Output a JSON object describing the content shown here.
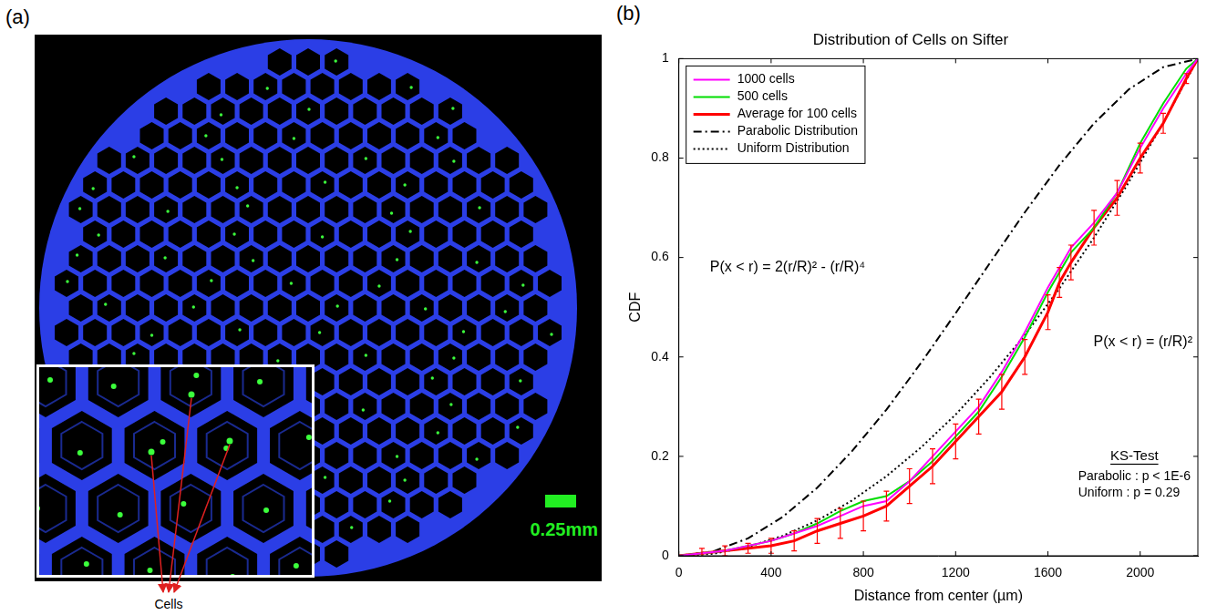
{
  "image_panel": {
    "panel_label": "(a)",
    "scale_bar_label": "0.25mm",
    "callout": "Cells"
  },
  "chart_data": {
    "type": "line",
    "panel_label": "(b)",
    "title": "Distribution of Cells on Sifter",
    "x_label": "Distance from center (µm)",
    "y_label": "CDF",
    "xlim": [
      0,
      2250
    ],
    "ylim": [
      0,
      1
    ],
    "xticks": [
      0,
      400,
      800,
      1200,
      1600,
      2000
    ],
    "yticks": [
      0,
      0.2,
      0.4,
      0.6,
      0.8,
      1
    ],
    "grid": false,
    "legend": "upper left",
    "series": [
      {
        "name": "1000 cells",
        "color": "#ff00ff",
        "line_style": "solid",
        "x": [
          0,
          200,
          400,
          500,
          600,
          700,
          800,
          900,
          1000,
          1100,
          1200,
          1300,
          1400,
          1500,
          1600,
          1700,
          1800,
          1900,
          2000,
          2100,
          2200,
          2250
        ],
        "values": [
          0,
          0.01,
          0.03,
          0.045,
          0.06,
          0.08,
          0.1,
          0.11,
          0.15,
          0.2,
          0.25,
          0.3,
          0.37,
          0.45,
          0.54,
          0.62,
          0.67,
          0.73,
          0.82,
          0.9,
          0.97,
          1
        ]
      },
      {
        "name": "500 cells",
        "color": "#00dd00",
        "line_style": "solid",
        "x": [
          0,
          200,
          400,
          500,
          600,
          700,
          800,
          900,
          1000,
          1100,
          1200,
          1300,
          1400,
          1500,
          1600,
          1700,
          1800,
          1900,
          2000,
          2100,
          2200,
          2250
        ],
        "values": [
          0,
          0.01,
          0.03,
          0.045,
          0.065,
          0.09,
          0.11,
          0.12,
          0.15,
          0.19,
          0.24,
          0.29,
          0.36,
          0.44,
          0.53,
          0.61,
          0.66,
          0.73,
          0.83,
          0.91,
          0.98,
          1
        ]
      },
      {
        "name": "Average for 100 cells",
        "color": "#ff0000",
        "line_style": "solid",
        "x": [
          0,
          100,
          200,
          300,
          400,
          500,
          600,
          700,
          800,
          900,
          1000,
          1100,
          1200,
          1300,
          1400,
          1500,
          1600,
          1650,
          1700,
          1800,
          1900,
          2000,
          2100,
          2200,
          2250
        ],
        "values": [
          0,
          0.005,
          0.01,
          0.015,
          0.02,
          0.03,
          0.05,
          0.065,
          0.08,
          0.1,
          0.14,
          0.18,
          0.23,
          0.28,
          0.33,
          0.4,
          0.49,
          0.55,
          0.59,
          0.66,
          0.72,
          0.8,
          0.87,
          0.96,
          1
        ],
        "errors": [
          0,
          0.01,
          0.01,
          0.01,
          0.015,
          0.02,
          0.025,
          0.03,
          0.03,
          0.03,
          0.035,
          0.035,
          0.035,
          0.035,
          0.035,
          0.035,
          0.035,
          0.03,
          0.035,
          0.035,
          0.035,
          0.03,
          0.02,
          0.01,
          0
        ]
      },
      {
        "name": "Parabolic Distribution",
        "color": "#000000",
        "line_style": "dashdot",
        "x": [
          0,
          150,
          300,
          450,
          600,
          750,
          900,
          1050,
          1200,
          1350,
          1500,
          1650,
          1800,
          1950,
          2100,
          2250
        ],
        "values": [
          0,
          0.009,
          0.035,
          0.078,
          0.137,
          0.21,
          0.294,
          0.388,
          0.488,
          0.59,
          0.691,
          0.786,
          0.87,
          0.938,
          0.983,
          1
        ]
      },
      {
        "name": "Uniform Distribution",
        "color": "#000000",
        "line_style": "dotted",
        "x": [
          0,
          150,
          300,
          450,
          600,
          750,
          900,
          1050,
          1200,
          1350,
          1500,
          1650,
          1800,
          1950,
          2100,
          2250
        ],
        "values": [
          0,
          0.004,
          0.018,
          0.04,
          0.071,
          0.111,
          0.16,
          0.218,
          0.284,
          0.36,
          0.444,
          0.538,
          0.64,
          0.751,
          0.871,
          1
        ]
      }
    ],
    "annotations": [
      "P(x < r) = 2(r/R)² - (r/R)⁴",
      "P(x < r) = (r/R)²"
    ],
    "ks_test": {
      "title": "KS-Test",
      "lines": [
        "Parabolic : p < 1E-6",
        "Uniform : p = 0.29"
      ]
    }
  }
}
